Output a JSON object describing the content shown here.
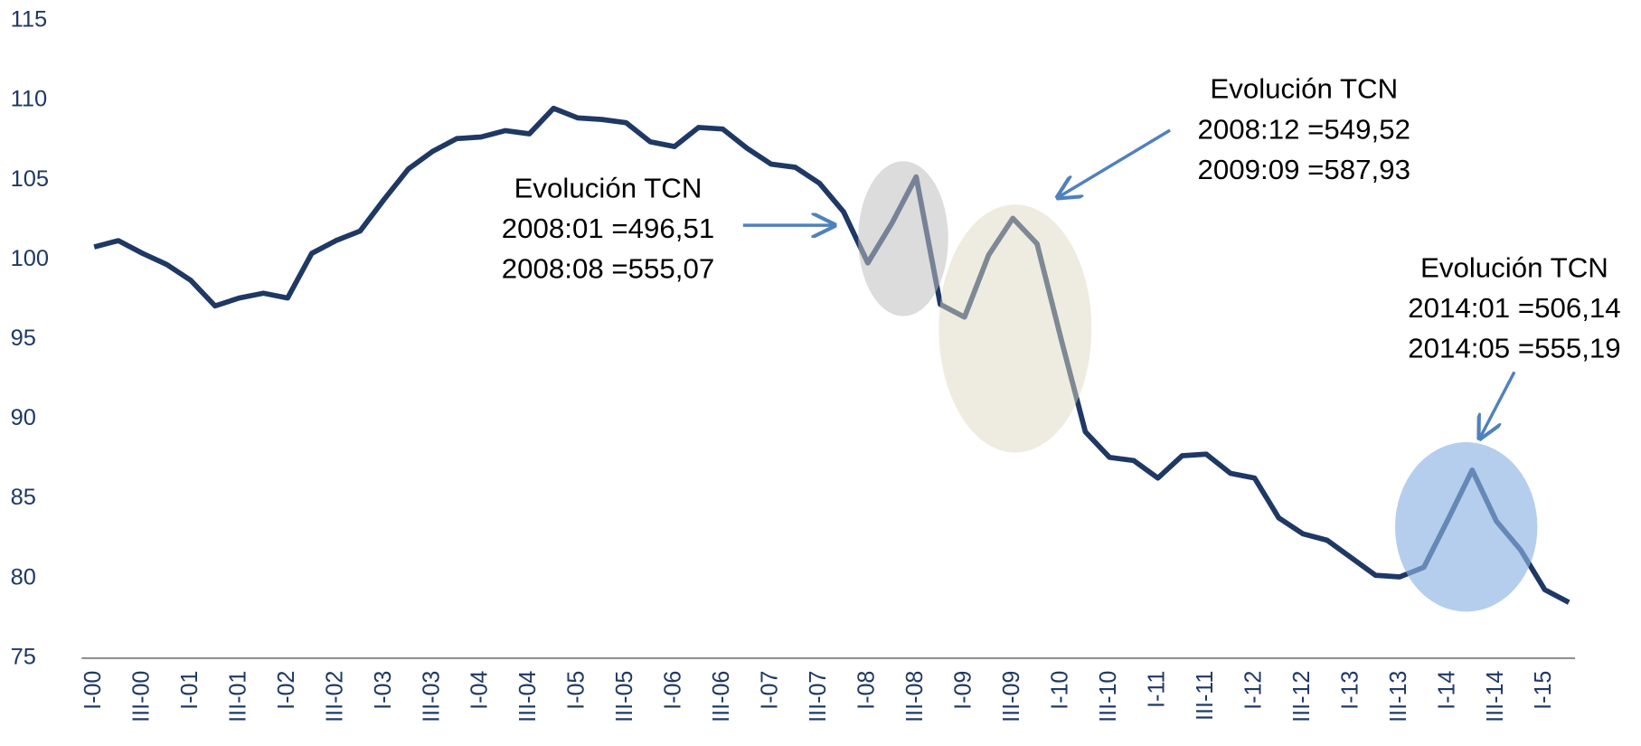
{
  "chart_data": {
    "type": "line",
    "categories": [
      "I-00",
      null,
      "III-00",
      null,
      "I-01",
      null,
      "III-01",
      null,
      "I-02",
      null,
      "III-02",
      null,
      "I-03",
      null,
      "III-03",
      null,
      "I-04",
      null,
      "III-04",
      null,
      "I-05",
      null,
      "III-05",
      null,
      "I-06",
      null,
      "III-06",
      null,
      "I-07",
      null,
      "III-07",
      null,
      "I-08",
      null,
      "III-08",
      null,
      "I-09",
      null,
      "III-09",
      null,
      "I-10",
      null,
      "III-10",
      null,
      "I-11",
      null,
      "III-11",
      null,
      "I-12",
      null,
      "III-12",
      null,
      "I-13",
      null,
      "III-13",
      null,
      "I-14",
      null,
      "III-14",
      null,
      "I-15",
      null
    ],
    "values": [
      100.8,
      101.2,
      100.4,
      99.7,
      98.7,
      97.1,
      97.6,
      97.9,
      97.6,
      100.4,
      101.2,
      101.8,
      103.8,
      105.7,
      106.8,
      107.6,
      107.7,
      108.1,
      107.9,
      109.5,
      108.9,
      108.8,
      108.6,
      107.4,
      107.1,
      108.3,
      108.2,
      107.0,
      106.0,
      105.8,
      104.8,
      103.0,
      99.8,
      102.3,
      105.2,
      97.2,
      96.4,
      100.3,
      102.6,
      101.0,
      95.0,
      89.2,
      87.6,
      87.4,
      86.3,
      87.7,
      87.8,
      86.6,
      86.3,
      83.8,
      82.8,
      82.4,
      81.3,
      80.2,
      80.1,
      80.7,
      83.7,
      86.8,
      83.6,
      81.8,
      79.3,
      78.5
    ],
    "color": "#1f3864",
    "ylim": [
      75,
      115
    ],
    "yticks": [
      75,
      80,
      85,
      90,
      95,
      100,
      105,
      110,
      115
    ],
    "annotations": [
      [
        "Evolución TCN",
        "2008:01 =496,51",
        "2008:08 =555,07"
      ],
      [
        "Evolución TCN",
        "2008:12 =549,52",
        "2009:09 =587,93"
      ],
      [
        "Evolución TCN",
        "2014:01 =506,14",
        "2014:05 =555,19"
      ]
    ]
  }
}
